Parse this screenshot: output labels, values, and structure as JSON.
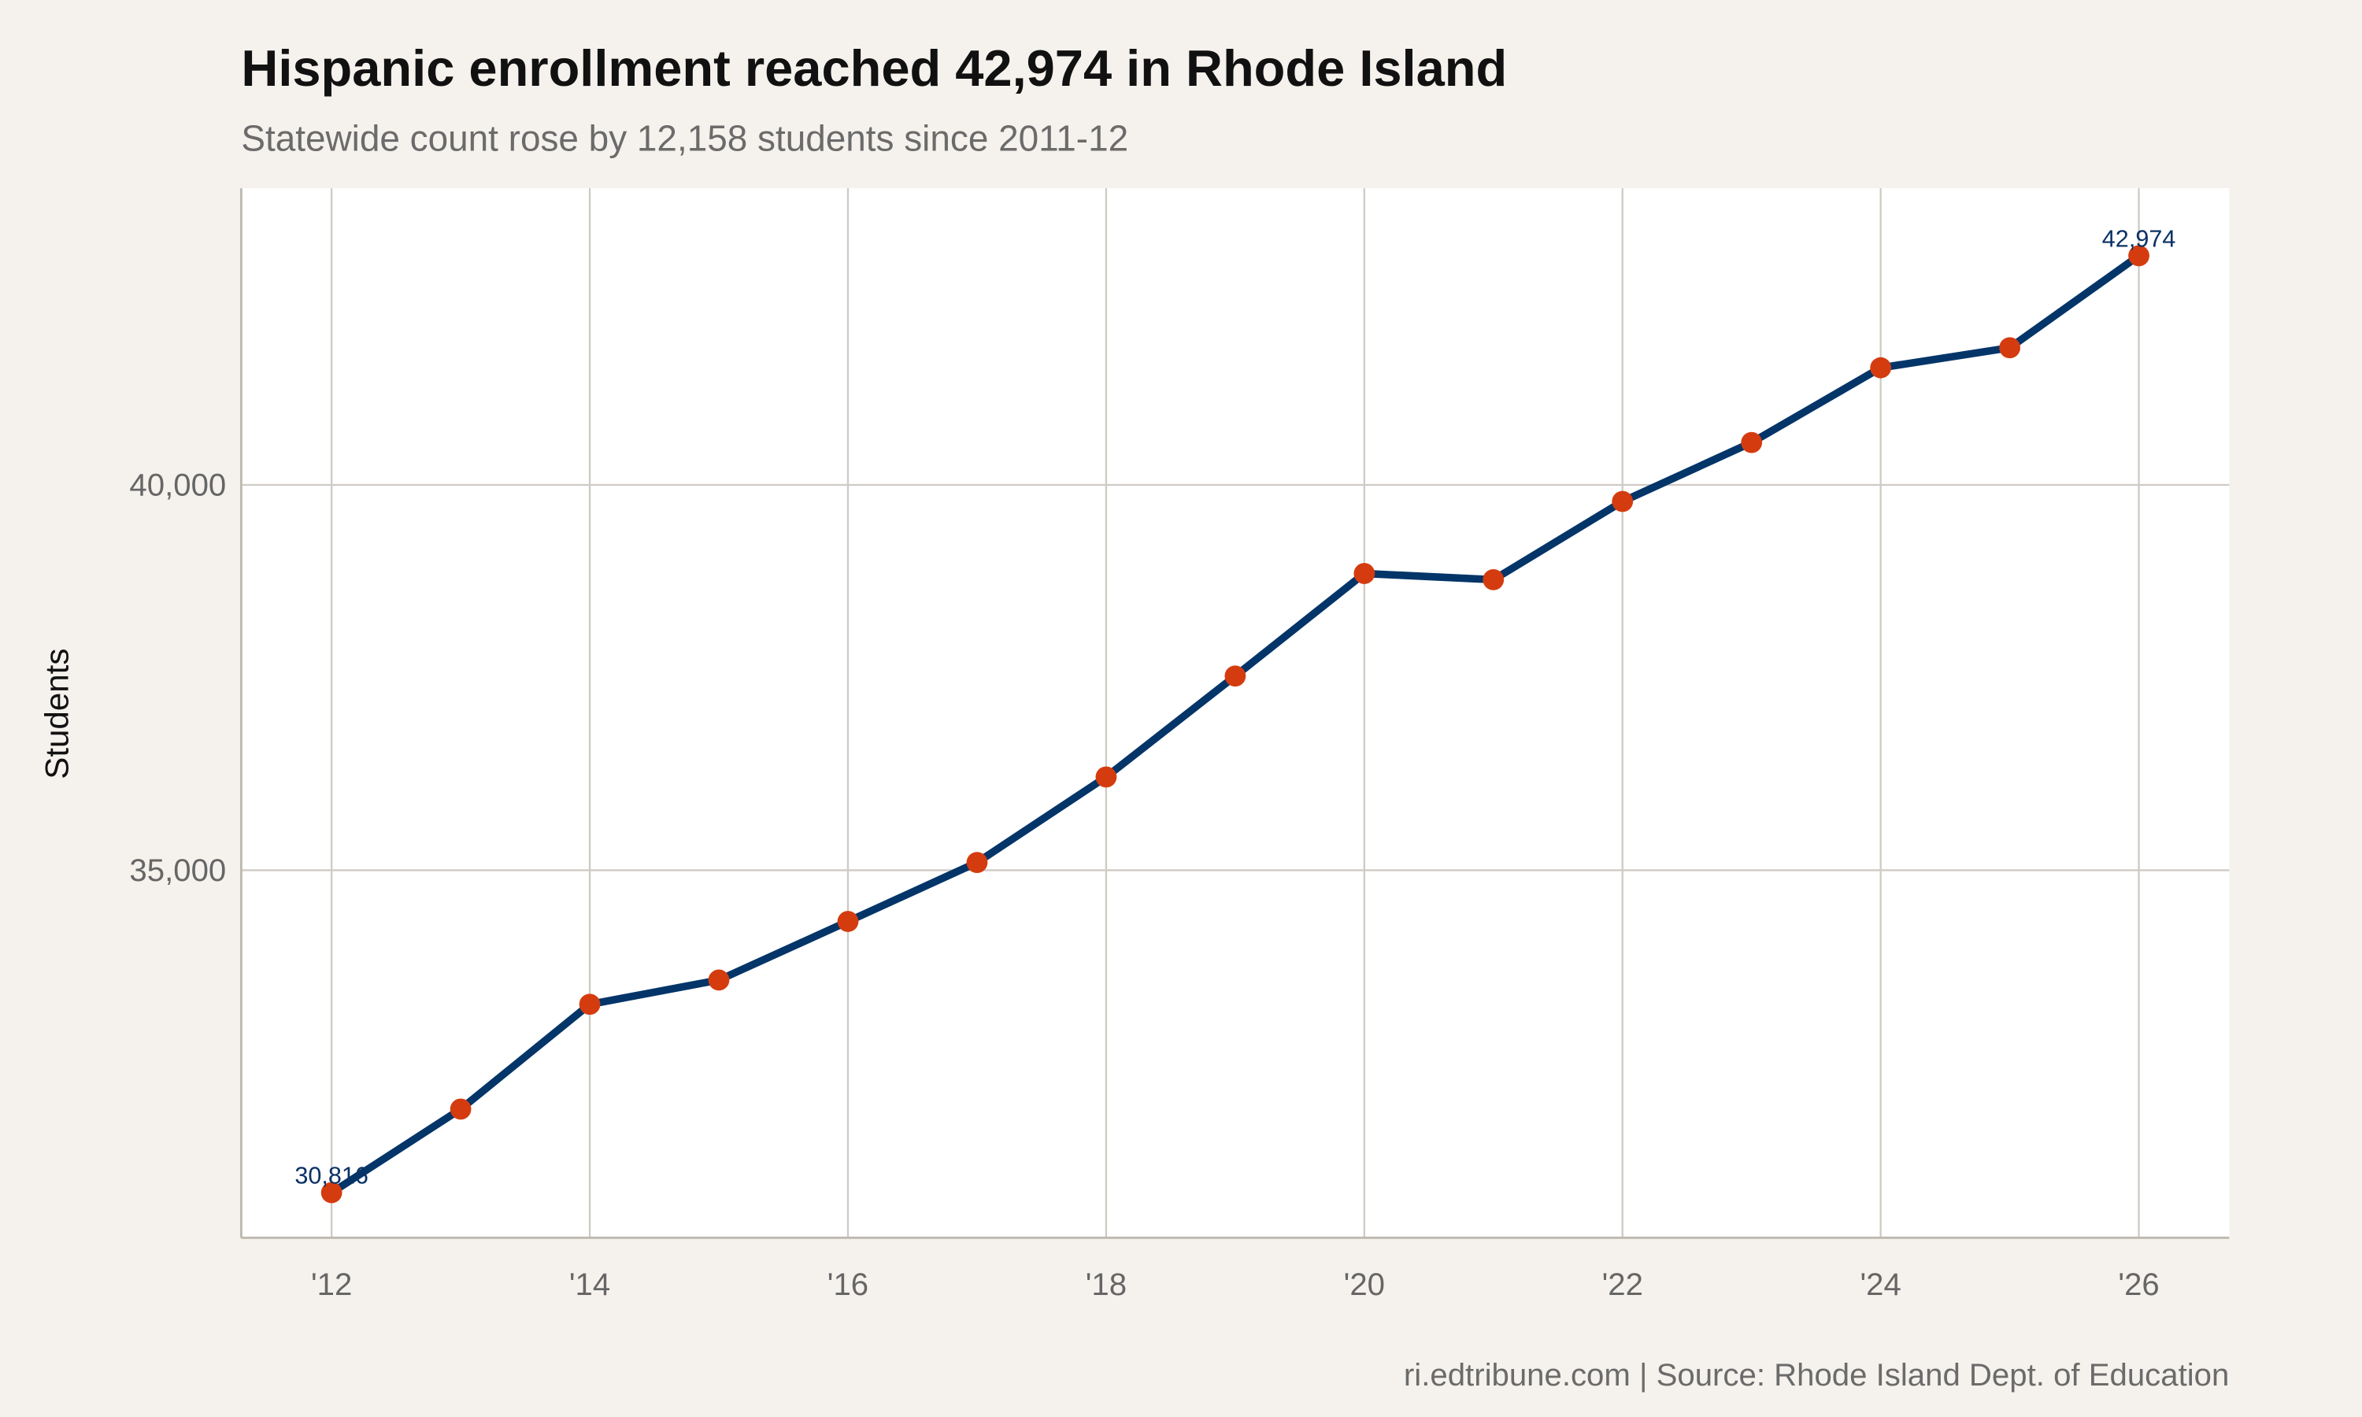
{
  "title": "Hispanic enrollment reached 42,974 in Rhode Island",
  "subtitle": "Statewide count rose by 12,158 students since 2011-12",
  "caption": "ri.edtribune.com | Source: Rhode Island Dept. of Education",
  "colors": {
    "background": "#f5f2ed",
    "panel": "#ffffff",
    "line": "#033569",
    "points": "#d43c0f",
    "grid": "#cfcac3",
    "label": "#0a3266"
  },
  "chart_data": {
    "type": "line",
    "title": "Hispanic enrollment reached 42,974 in Rhode Island",
    "subtitle": "Statewide count rose by 12,158 students since 2011-12",
    "xlabel": "",
    "ylabel": "Students",
    "x": [
      2012,
      2013,
      2014,
      2015,
      2016,
      2017,
      2018,
      2019,
      2020,
      2021,
      2022,
      2023,
      2024,
      2025,
      2026
    ],
    "values": [
      30816,
      31900,
      33260,
      33575,
      34335,
      35100,
      36210,
      37520,
      38850,
      38770,
      39785,
      40550,
      41520,
      41780,
      42974
    ],
    "xlim": [
      2011.3,
      2026.7
    ],
    "ylim": [
      30230,
      43850
    ],
    "x_ticks": [
      2012,
      2014,
      2016,
      2018,
      2020,
      2022,
      2024,
      2026
    ],
    "x_tick_labels": [
      "'12",
      "'14",
      "'16",
      "'18",
      "'20",
      "'22",
      "'24",
      "'26"
    ],
    "y_ticks": [
      35000,
      40000
    ],
    "y_tick_labels": [
      "35,000",
      "40,000"
    ],
    "data_labels": [
      {
        "x": 2012,
        "text": "30,816"
      },
      {
        "x": 2026,
        "text": "42,974"
      }
    ],
    "grid": true,
    "legend": "none"
  }
}
